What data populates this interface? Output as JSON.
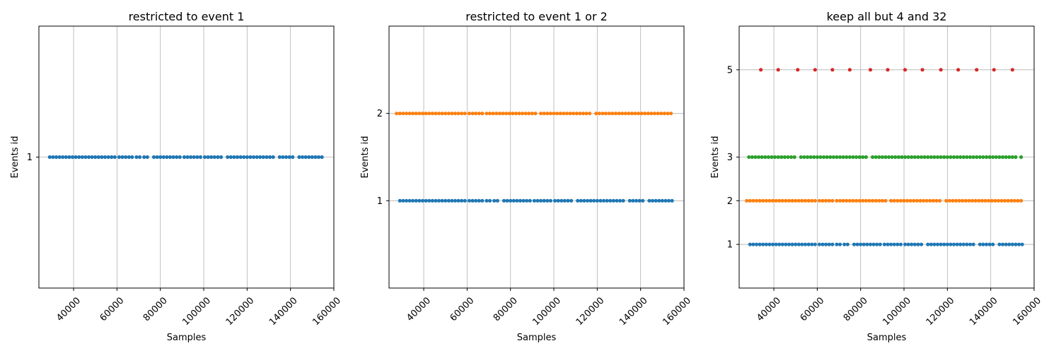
{
  "colors": {
    "event_1": "#1f77b4",
    "event_2": "#ff7f0e",
    "event_3": "#2ca02c",
    "event_5": "#d62728",
    "grid": "#b0b0b0",
    "axes": "#000000"
  },
  "chart_data": [
    {
      "type": "scatter",
      "title": "restricted to event 1",
      "xlabel": "Samples",
      "ylabel": "Events id",
      "xlim": [
        24000,
        160000
      ],
      "ylim": [
        0,
        2
      ],
      "xticks": [
        40000,
        60000,
        80000,
        100000,
        120000,
        140000,
        160000
      ],
      "yticks": [
        1
      ],
      "grid": true,
      "series": [
        {
          "id": 1,
          "color_key": "event_1",
          "x": [
            29000,
            30500,
            32000,
            33500,
            35000,
            36500,
            38000,
            39500,
            41000,
            42500,
            44000,
            45500,
            47000,
            48500,
            50000,
            51500,
            53000,
            54500,
            56000,
            57500,
            59000,
            61000,
            62500,
            64000,
            65500,
            67000,
            69000,
            70500,
            72500,
            74000,
            77000,
            78500,
            80000,
            81500,
            83000,
            84500,
            86000,
            87500,
            89000,
            91000,
            92500,
            94000,
            95500,
            97000,
            98500,
            100500,
            102000,
            103500,
            105000,
            106500,
            108000,
            111000,
            112500,
            114000,
            115500,
            117000,
            118500,
            120000,
            121500,
            123000,
            124500,
            126000,
            127500,
            129000,
            130500,
            132000,
            135000,
            136500,
            138000,
            139500,
            141000,
            144000,
            145500,
            147000,
            148500,
            150000,
            151500,
            153000,
            154500
          ],
          "y": 1
        }
      ]
    },
    {
      "type": "scatter",
      "title": "restricted to event 1 or 2",
      "xlabel": "Samples",
      "ylabel": "Events id",
      "xlim": [
        24000,
        160000
      ],
      "ylim": [
        0,
        3
      ],
      "xticks": [
        40000,
        60000,
        80000,
        100000,
        120000,
        140000,
        160000
      ],
      "yticks": [
        1,
        2
      ],
      "grid": true,
      "series": [
        {
          "id": 2,
          "color_key": "event_2",
          "x": [
            27500,
            29000,
            30500,
            32000,
            33500,
            35000,
            36500,
            38000,
            39500,
            41000,
            42500,
            44000,
            45500,
            47000,
            48500,
            50000,
            51500,
            53000,
            54500,
            56000,
            57500,
            59000,
            61000,
            62500,
            64000,
            65500,
            67000,
            69000,
            70500,
            72000,
            73500,
            75000,
            76500,
            78000,
            79500,
            81000,
            82500,
            84000,
            85500,
            87000,
            88500,
            90000,
            91500,
            94000,
            95500,
            97000,
            98500,
            100000,
            101500,
            103000,
            104500,
            106000,
            107500,
            109000,
            110500,
            112000,
            113500,
            115000,
            116500,
            119500,
            121000,
            122500,
            124000,
            125500,
            127000,
            128500,
            130000,
            131500,
            133000,
            134500,
            136000,
            137500,
            139000,
            140500,
            142000,
            143500,
            145000,
            146500,
            148000,
            149500,
            151000,
            152500,
            154000
          ],
          "y": 2
        },
        {
          "id": 1,
          "color_key": "event_1",
          "x": [
            29000,
            30500,
            32000,
            33500,
            35000,
            36500,
            38000,
            39500,
            41000,
            42500,
            44000,
            45500,
            47000,
            48500,
            50000,
            51500,
            53000,
            54500,
            56000,
            57500,
            59000,
            61000,
            62500,
            64000,
            65500,
            67000,
            69000,
            70500,
            72500,
            74000,
            77000,
            78500,
            80000,
            81500,
            83000,
            84500,
            86000,
            87500,
            89000,
            91000,
            92500,
            94000,
            95500,
            97000,
            98500,
            100500,
            102000,
            103500,
            105000,
            106500,
            108000,
            111000,
            112500,
            114000,
            115500,
            117000,
            118500,
            120000,
            121500,
            123000,
            124500,
            126000,
            127500,
            129000,
            130500,
            132000,
            135000,
            136500,
            138000,
            139500,
            141000,
            144000,
            145500,
            147000,
            148500,
            150000,
            151500,
            153000,
            154500
          ],
          "y": 1
        }
      ]
    },
    {
      "type": "scatter",
      "title": "keep all but 4 and 32",
      "xlabel": "Samples",
      "ylabel": "Events id",
      "xlim": [
        24000,
        160000
      ],
      "ylim": [
        0,
        6
      ],
      "xticks": [
        40000,
        60000,
        80000,
        100000,
        120000,
        140000,
        160000
      ],
      "yticks": [
        1,
        2,
        3,
        5
      ],
      "grid": true,
      "series": [
        {
          "id": 5,
          "color_key": "event_5",
          "x": [
            34000,
            42000,
            51000,
            59000,
            67000,
            75000,
            84500,
            92500,
            100500,
            108500,
            117000,
            125000,
            133500,
            141500,
            150000
          ],
          "y": 5
        },
        {
          "id": 3,
          "color_key": "event_3",
          "x": [
            28500,
            30000,
            31500,
            33000,
            34500,
            36000,
            37500,
            39000,
            40500,
            42000,
            43500,
            45000,
            46500,
            48000,
            49500,
            52500,
            54000,
            55500,
            57000,
            58500,
            60000,
            61500,
            63000,
            64500,
            66000,
            67500,
            69000,
            70500,
            72000,
            73500,
            75000,
            76500,
            78000,
            79500,
            81000,
            82500,
            85500,
            87000,
            88500,
            90000,
            91500,
            93000,
            94500,
            96000,
            97500,
            99000,
            100500,
            102000,
            103500,
            105000,
            106500,
            108000,
            109500,
            111000,
            112500,
            114000,
            115500,
            117000,
            118500,
            120000,
            121500,
            123000,
            124500,
            126000,
            127500,
            129000,
            130500,
            132000,
            133500,
            135000,
            136500,
            138000,
            139500,
            141000,
            142500,
            144000,
            145500,
            147000,
            148500,
            150000,
            151500,
            154000
          ],
          "y": 3
        },
        {
          "id": 2,
          "color_key": "event_2",
          "x": [
            27500,
            29000,
            30500,
            32000,
            33500,
            35000,
            36500,
            38000,
            39500,
            41000,
            42500,
            44000,
            45500,
            47000,
            48500,
            50000,
            51500,
            53000,
            54500,
            56000,
            57500,
            59000,
            61000,
            62500,
            64000,
            65500,
            67000,
            69000,
            70500,
            72000,
            73500,
            75000,
            76500,
            78000,
            79500,
            81000,
            82500,
            84000,
            85500,
            87000,
            88500,
            90000,
            91500,
            94000,
            95500,
            97000,
            98500,
            100000,
            101500,
            103000,
            104500,
            106000,
            107500,
            109000,
            110500,
            112000,
            113500,
            115000,
            116500,
            119500,
            121000,
            122500,
            124000,
            125500,
            127000,
            128500,
            130000,
            131500,
            133000,
            134500,
            136000,
            137500,
            139000,
            140500,
            142000,
            143500,
            145000,
            146500,
            148000,
            149500,
            151000,
            152500,
            154000
          ],
          "y": 2
        },
        {
          "id": 1,
          "color_key": "event_1",
          "x": [
            29000,
            30500,
            32000,
            33500,
            35000,
            36500,
            38000,
            39500,
            41000,
            42500,
            44000,
            45500,
            47000,
            48500,
            50000,
            51500,
            53000,
            54500,
            56000,
            57500,
            59000,
            61000,
            62500,
            64000,
            65500,
            67000,
            69000,
            70500,
            72500,
            74000,
            77000,
            78500,
            80000,
            81500,
            83000,
            84500,
            86000,
            87500,
            89000,
            91000,
            92500,
            94000,
            95500,
            97000,
            98500,
            100500,
            102000,
            103500,
            105000,
            106500,
            108000,
            111000,
            112500,
            114000,
            115500,
            117000,
            118500,
            120000,
            121500,
            123000,
            124500,
            126000,
            127500,
            129000,
            130500,
            132000,
            135000,
            136500,
            138000,
            139500,
            141000,
            144000,
            145500,
            147000,
            148500,
            150000,
            151500,
            153000,
            154500
          ],
          "y": 1
        }
      ]
    }
  ]
}
